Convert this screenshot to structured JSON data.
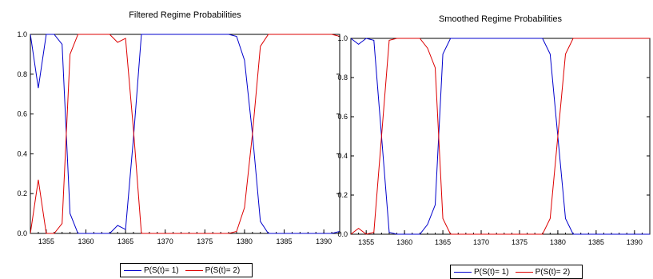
{
  "chart_data": [
    {
      "type": "line",
      "title": "Filtered Regime Probabilities",
      "xlabel": "",
      "ylabel": "",
      "xlim": [
        1353,
        1392
      ],
      "ylim": [
        0,
        1
      ],
      "x_ticks": [
        "1355",
        "1360",
        "1365",
        "1370",
        "1375",
        "1380",
        "1385",
        "1390"
      ],
      "y_ticks": [
        "0.0",
        "0.2",
        "0.4",
        "0.6",
        "0.8",
        "1.0"
      ],
      "grid": false,
      "legend_position": "bottom",
      "x": [
        1353,
        1354,
        1355,
        1356,
        1357,
        1358,
        1359,
        1360,
        1361,
        1362,
        1363,
        1364,
        1365,
        1366,
        1367,
        1368,
        1369,
        1370,
        1371,
        1372,
        1373,
        1374,
        1375,
        1376,
        1377,
        1378,
        1379,
        1380,
        1381,
        1382,
        1383,
        1384,
        1385,
        1386,
        1387,
        1388,
        1389,
        1390,
        1391,
        1392
      ],
      "series": [
        {
          "name": "P(S(t)= 1)",
          "color": "#0000cc",
          "values": [
            1.0,
            0.73,
            1.0,
            1.0,
            0.95,
            0.1,
            0.0,
            0.0,
            0.0,
            0.0,
            0.0,
            0.04,
            0.02,
            0.48,
            1.0,
            1.0,
            1.0,
            1.0,
            1.0,
            1.0,
            1.0,
            1.0,
            1.0,
            1.0,
            1.0,
            1.0,
            0.99,
            0.87,
            0.5,
            0.06,
            0.0,
            0.0,
            0.0,
            0.0,
            0.0,
            0.0,
            0.0,
            0.0,
            0.0,
            0.01
          ]
        },
        {
          "name": "P(S(t)= 2)",
          "color": "#dd0000",
          "values": [
            0.0,
            0.27,
            0.0,
            0.0,
            0.05,
            0.9,
            1.0,
            1.0,
            1.0,
            1.0,
            1.0,
            0.96,
            0.98,
            0.52,
            0.0,
            0.0,
            0.0,
            0.0,
            0.0,
            0.0,
            0.0,
            0.0,
            0.0,
            0.0,
            0.0,
            0.0,
            0.01,
            0.13,
            0.5,
            0.94,
            1.0,
            1.0,
            1.0,
            1.0,
            1.0,
            1.0,
            1.0,
            1.0,
            1.0,
            0.99
          ]
        }
      ]
    },
    {
      "type": "line",
      "title": "Smoothed Regime Probabilities",
      "xlabel": "",
      "ylabel": "",
      "xlim": [
        1353,
        1392
      ],
      "ylim": [
        0,
        1
      ],
      "x_ticks": [
        "1355",
        "1360",
        "1365",
        "1370",
        "1375",
        "1380",
        "1385",
        "1390"
      ],
      "y_ticks": [
        "0.0",
        "0.2",
        "0.4",
        "0.6",
        "0.8",
        "1.0"
      ],
      "grid": false,
      "legend_position": "bottom",
      "x": [
        1353,
        1354,
        1355,
        1356,
        1357,
        1358,
        1359,
        1360,
        1361,
        1362,
        1363,
        1364,
        1365,
        1366,
        1367,
        1368,
        1369,
        1370,
        1371,
        1372,
        1373,
        1374,
        1375,
        1376,
        1377,
        1378,
        1379,
        1380,
        1381,
        1382,
        1383,
        1384,
        1385,
        1386,
        1387,
        1388,
        1389,
        1390,
        1391,
        1392
      ],
      "series": [
        {
          "name": "P(S(t)= 1)",
          "color": "#0000cc",
          "values": [
            1.0,
            0.97,
            1.0,
            0.99,
            0.5,
            0.01,
            0.0,
            0.0,
            0.0,
            0.0,
            0.05,
            0.15,
            0.92,
            1.0,
            1.0,
            1.0,
            1.0,
            1.0,
            1.0,
            1.0,
            1.0,
            1.0,
            1.0,
            1.0,
            1.0,
            1.0,
            0.92,
            0.5,
            0.08,
            0.0,
            0.0,
            0.0,
            0.0,
            0.0,
            0.0,
            0.0,
            0.0,
            0.0,
            0.0,
            0.0
          ]
        },
        {
          "name": "P(S(t)= 2)",
          "color": "#dd0000",
          "values": [
            0.0,
            0.03,
            0.0,
            0.01,
            0.5,
            0.99,
            1.0,
            1.0,
            1.0,
            1.0,
            0.95,
            0.85,
            0.08,
            0.0,
            0.0,
            0.0,
            0.0,
            0.0,
            0.0,
            0.0,
            0.0,
            0.0,
            0.0,
            0.0,
            0.0,
            0.0,
            0.08,
            0.5,
            0.92,
            1.0,
            1.0,
            1.0,
            1.0,
            1.0,
            1.0,
            1.0,
            1.0,
            1.0,
            1.0,
            1.0
          ]
        }
      ]
    }
  ]
}
